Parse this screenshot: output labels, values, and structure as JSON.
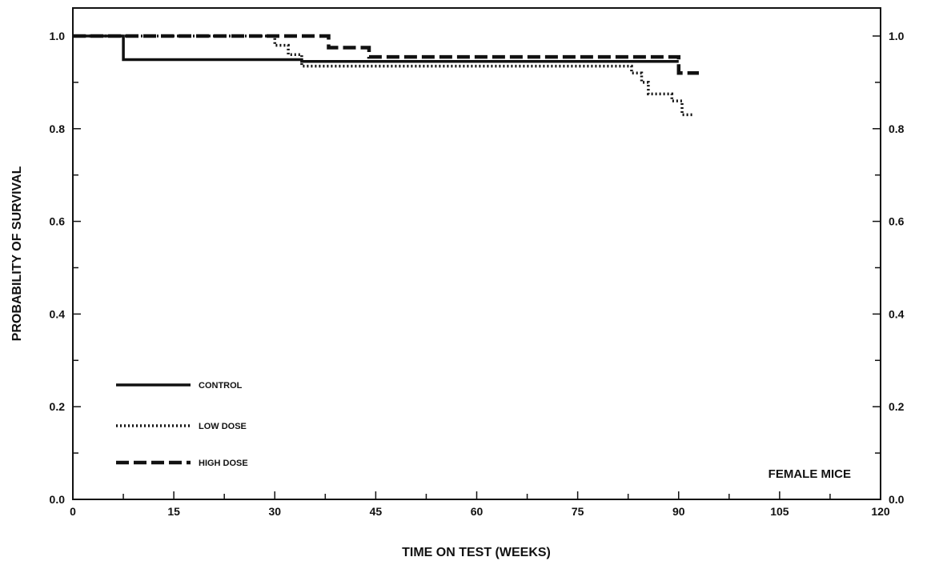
{
  "chart_data": {
    "type": "line",
    "xlabel": "TIME ON TEST (WEEKS)",
    "ylabel": "PROBABILITY OF SURVIVAL",
    "xlim": [
      0,
      120
    ],
    "ylim": [
      0,
      1.0
    ],
    "x_ticks": [
      "0",
      "15",
      "30",
      "45",
      "60",
      "75",
      "90",
      "105",
      "120"
    ],
    "y_ticks_left": [
      "0.0",
      "0.2",
      "0.4",
      "0.6",
      "0.8",
      "1.0"
    ],
    "y_ticks_right": [
      "0.0",
      "0.2",
      "0.4",
      "0.6",
      "0.8",
      "1.0"
    ],
    "grid": false,
    "legend_position": "bottom-left",
    "annotation": "FEMALE MICE",
    "series": [
      {
        "name": "CONTROL",
        "style": "solid",
        "points": [
          [
            0,
            1.0
          ],
          [
            7.5,
            1.0
          ],
          [
            7.5,
            0.949
          ],
          [
            34,
            0.949
          ],
          [
            34,
            0.945
          ],
          [
            90,
            0.945
          ]
        ]
      },
      {
        "name": "LOW DOSE",
        "style": "dotted",
        "points": [
          [
            0,
            1.0
          ],
          [
            30,
            1.0
          ],
          [
            30,
            0.98
          ],
          [
            32,
            0.98
          ],
          [
            32,
            0.96
          ],
          [
            34,
            0.96
          ],
          [
            34,
            0.935
          ],
          [
            83,
            0.935
          ],
          [
            83,
            0.92
          ],
          [
            84.5,
            0.92
          ],
          [
            84.5,
            0.9
          ],
          [
            85.5,
            0.9
          ],
          [
            85.5,
            0.875
          ],
          [
            89,
            0.875
          ],
          [
            89,
            0.86
          ],
          [
            90.5,
            0.86
          ],
          [
            90.5,
            0.83
          ],
          [
            92,
            0.83
          ]
        ]
      },
      {
        "name": "HIGH DOSE",
        "style": "dashed",
        "points": [
          [
            0,
            1.0
          ],
          [
            38,
            1.0
          ],
          [
            38,
            0.975
          ],
          [
            44,
            0.975
          ],
          [
            44,
            0.955
          ],
          [
            90,
            0.955
          ],
          [
            90,
            0.92
          ],
          [
            93,
            0.92
          ]
        ]
      }
    ]
  }
}
